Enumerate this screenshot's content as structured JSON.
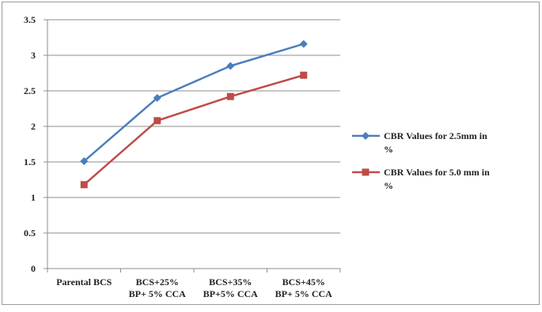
{
  "chart_data": {
    "type": "line",
    "categories": [
      [
        "Parental BCS"
      ],
      [
        "BCS+25%",
        "BP+ 5% CCA"
      ],
      [
        "BCS+35%",
        "BP+5% CCA"
      ],
      [
        "BCS+45%",
        "BP+ 5% CCA"
      ]
    ],
    "y_ticks": [
      "0",
      "0.5",
      "1",
      "1.5",
      "2",
      "2.5",
      "3",
      "3.5"
    ],
    "ylim": [
      0,
      3.5
    ],
    "grid": true,
    "legend_position": "right",
    "series": [
      {
        "name": [
          "CBR Values for 2.5mm in",
          "%"
        ],
        "values": [
          1.51,
          2.4,
          2.85,
          3.16
        ],
        "color": "#4a7ebb",
        "marker": "diamond"
      },
      {
        "name": [
          "CBR Values for 5.0 mm in",
          "%"
        ],
        "values": [
          1.18,
          2.08,
          2.42,
          2.72
        ],
        "color": "#be4b48",
        "marker": "square"
      }
    ]
  }
}
